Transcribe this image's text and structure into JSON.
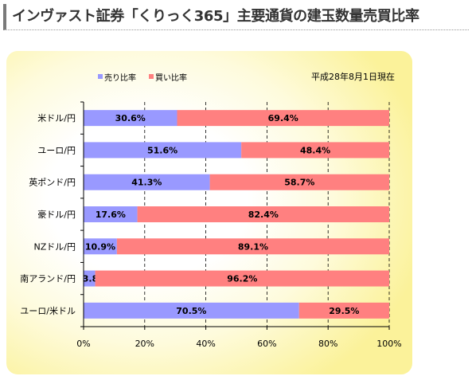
{
  "page": {
    "title": "インヴァスト証券「くりっく365」主要通貨の建玉数量売買比率"
  },
  "chart_data": {
    "type": "bar",
    "stacked": true,
    "orientation": "horizontal",
    "date_label": "平成28年8月1日現在",
    "categories": [
      "米ドル/円",
      "ユーロ/円",
      "英ポンド/円",
      "豪ドル/円",
      "NZドル/円",
      "南アランド/円",
      "ユーロ/米ドル"
    ],
    "series": [
      {
        "name": "売り比率",
        "color": "#9999ff",
        "values": [
          30.6,
          51.6,
          41.3,
          17.6,
          10.9,
          3.8,
          70.5
        ]
      },
      {
        "name": "買い比率",
        "color": "#ff8080",
        "values": [
          69.4,
          48.4,
          58.7,
          82.4,
          89.1,
          96.2,
          29.5
        ]
      }
    ],
    "value_suffix": "%",
    "xlim": [
      0,
      100
    ],
    "x_ticks": [
      0,
      20,
      40,
      60,
      80,
      100
    ],
    "x_tick_labels": [
      "0%",
      "20%",
      "40%",
      "60%",
      "80%",
      "100%"
    ],
    "grid": "vertical dashed",
    "legend_position": "top-left"
  }
}
